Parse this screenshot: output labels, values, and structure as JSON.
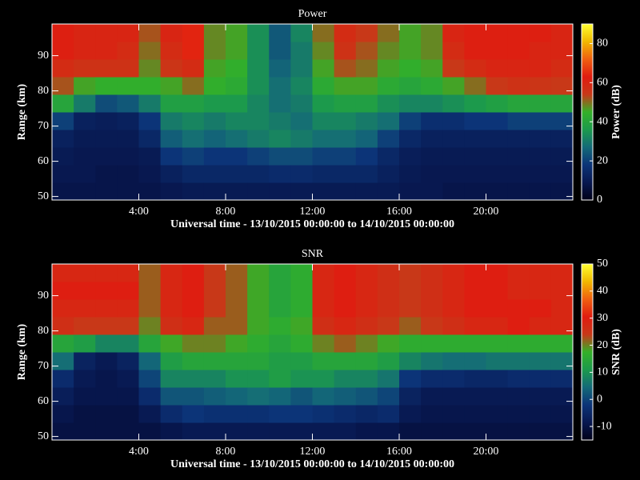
{
  "chart_data": [
    {
      "type": "heatmap",
      "title": "Power",
      "x_label": "Universal time - 13/10/2015 00:00:00 to 14/10/2015 00:00:00",
      "y_label": "Range (km)",
      "colorbar_label": "Power (dB)",
      "colormap": [
        "#000018",
        "#081850",
        "#0c3478",
        "#146a78",
        "#1c9a4c",
        "#34b028",
        "#c83818",
        "#e01c10",
        "#f06010",
        "#f0b800",
        "#ffff30"
      ],
      "xlim": [
        0,
        24
      ],
      "xticks": [
        {
          "value": 4,
          "label": "4:00"
        },
        {
          "value": 8,
          "label": "8:00"
        },
        {
          "value": 12,
          "label": "12:00"
        },
        {
          "value": 16,
          "label": "16:00"
        },
        {
          "value": 20,
          "label": "20:00"
        }
      ],
      "ylim": [
        49,
        99
      ],
      "yticks": [
        50,
        60,
        70,
        80,
        90
      ],
      "zlim": [
        0,
        90
      ],
      "zticks": [
        0,
        20,
        40,
        60,
        80
      ],
      "x": [
        0.5,
        1.5,
        2.5,
        3.5,
        4.5,
        5.5,
        6.5,
        7.5,
        8.5,
        9.5,
        10.5,
        11.5,
        12.5,
        13.5,
        14.5,
        15.5,
        16.5,
        17.5,
        18.5,
        19.5,
        20.5,
        21.5,
        22.5,
        23.5
      ],
      "y": [
        51.5,
        56.5,
        61.5,
        66.5,
        71.5,
        76.5,
        81.5,
        86.5,
        91.5,
        96.5
      ],
      "values": [
        [
          8,
          8,
          8,
          8,
          8,
          9,
          10,
          10,
          10,
          10,
          10,
          10,
          10,
          10,
          10,
          10,
          9,
          9,
          8,
          8,
          8,
          8,
          8,
          8
        ],
        [
          9,
          9,
          8,
          8,
          9,
          12,
          14,
          14,
          14,
          14,
          15,
          15,
          14,
          14,
          14,
          12,
          10,
          9,
          9,
          9,
          9,
          9,
          9,
          9
        ],
        [
          10,
          9,
          9,
          9,
          10,
          18,
          20,
          18,
          18,
          20,
          22,
          22,
          20,
          20,
          18,
          14,
          11,
          10,
          10,
          10,
          10,
          10,
          10,
          10
        ],
        [
          12,
          10,
          10,
          10,
          14,
          25,
          28,
          26,
          28,
          30,
          32,
          30,
          28,
          28,
          26,
          20,
          14,
          12,
          12,
          12,
          12,
          12,
          12,
          12
        ],
        [
          20,
          12,
          11,
          12,
          18,
          30,
          32,
          30,
          32,
          32,
          30,
          28,
          32,
          32,
          30,
          28,
          20,
          16,
          16,
          18,
          18,
          20,
          20,
          20
        ],
        [
          40,
          30,
          22,
          24,
          30,
          38,
          38,
          36,
          36,
          32,
          28,
          30,
          36,
          38,
          38,
          34,
          32,
          32,
          34,
          36,
          38,
          40,
          40,
          40
        ],
        [
          52,
          46,
          44,
          44,
          44,
          46,
          50,
          44,
          42,
          34,
          28,
          32,
          42,
          46,
          46,
          42,
          40,
          42,
          46,
          50,
          54,
          56,
          55,
          54
        ],
        [
          58,
          56,
          56,
          56,
          48,
          55,
          58,
          46,
          44,
          34,
          26,
          30,
          46,
          52,
          50,
          46,
          44,
          46,
          54,
          58,
          60,
          60,
          60,
          58
        ],
        [
          62,
          60,
          60,
          58,
          50,
          58,
          64,
          48,
          46,
          34,
          24,
          30,
          48,
          56,
          52,
          48,
          46,
          48,
          58,
          62,
          62,
          62,
          60,
          60
        ],
        [
          62,
          60,
          60,
          60,
          52,
          60,
          64,
          48,
          46,
          34,
          24,
          32,
          50,
          58,
          54,
          50,
          46,
          48,
          60,
          62,
          62,
          62,
          62,
          60
        ]
      ]
    },
    {
      "type": "heatmap",
      "title": "SNR",
      "x_label": "Universal time - 13/10/2015 00:00:00 to 14/10/2015 00:00:00",
      "y_label": "Range (km)",
      "colorbar_label": "SNR (dB)",
      "colormap": [
        "#000018",
        "#081850",
        "#0c3478",
        "#146a78",
        "#1c9a4c",
        "#34b028",
        "#c83818",
        "#e01c10",
        "#f06010",
        "#f0b800",
        "#ffff30"
      ],
      "xlim": [
        0,
        24
      ],
      "xticks": [
        {
          "value": 4,
          "label": "4:00"
        },
        {
          "value": 8,
          "label": "8:00"
        },
        {
          "value": 12,
          "label": "12:00"
        },
        {
          "value": 16,
          "label": "16:00"
        },
        {
          "value": 20,
          "label": "20:00"
        }
      ],
      "ylim": [
        49,
        99
      ],
      "yticks": [
        50,
        60,
        70,
        80,
        90
      ],
      "zlim": [
        -15,
        50
      ],
      "zticks": [
        -10,
        0,
        10,
        20,
        30,
        40,
        50
      ],
      "x": [
        0.5,
        1.5,
        2.5,
        3.5,
        4.5,
        5.5,
        6.5,
        7.5,
        8.5,
        9.5,
        10.5,
        11.5,
        12.5,
        13.5,
        14.5,
        15.5,
        16.5,
        17.5,
        18.5,
        19.5,
        20.5,
        21.5,
        22.5,
        23.5
      ],
      "y": [
        51.5,
        56.5,
        61.5,
        66.5,
        71.5,
        76.5,
        81.5,
        86.5,
        91.5,
        96.5
      ],
      "values": [
        [
          -10,
          -10,
          -10,
          -10,
          -10,
          -9,
          -8,
          -8,
          -8,
          -8,
          -8,
          -8,
          -8,
          -8,
          -9,
          -9,
          -10,
          -10,
          -10,
          -10,
          -10,
          -10,
          -10,
          -10
        ],
        [
          -9,
          -10,
          -10,
          -10,
          -8,
          -4,
          -2,
          -3,
          -3,
          -3,
          -2,
          -2,
          -3,
          -4,
          -5,
          -4,
          -8,
          -9,
          -9,
          -9,
          -9,
          -9,
          -9,
          -9
        ],
        [
          -7,
          -9,
          -9,
          -9,
          -4,
          2,
          2,
          3,
          4,
          5,
          4,
          2,
          4,
          3,
          2,
          0,
          -6,
          -8,
          -8,
          -8,
          -8,
          -8,
          -8,
          -8
        ],
        [
          -4,
          -8,
          -9,
          -8,
          0,
          8,
          8,
          8,
          10,
          10,
          12,
          10,
          10,
          8,
          8,
          6,
          -2,
          -4,
          -4,
          -5,
          -5,
          -4,
          -4,
          -4
        ],
        [
          5,
          -6,
          -8,
          -6,
          4,
          12,
          14,
          14,
          14,
          14,
          12,
          12,
          14,
          14,
          14,
          12,
          8,
          6,
          5,
          5,
          6,
          6,
          6,
          6
        ],
        [
          14,
          12,
          8,
          8,
          14,
          18,
          20,
          20,
          18,
          16,
          14,
          16,
          20,
          22,
          20,
          18,
          16,
          16,
          16,
          16,
          16,
          16,
          16,
          16
        ],
        [
          26,
          24,
          24,
          24,
          20,
          26,
          28,
          22,
          22,
          18,
          16,
          18,
          26,
          28,
          26,
          24,
          22,
          24,
          26,
          28,
          28,
          30,
          28,
          28
        ],
        [
          28,
          28,
          28,
          28,
          22,
          28,
          30,
          24,
          22,
          18,
          14,
          16,
          28,
          30,
          28,
          26,
          24,
          26,
          28,
          30,
          30,
          30,
          30,
          28
        ],
        [
          30,
          30,
          30,
          30,
          22,
          28,
          30,
          24,
          22,
          18,
          14,
          16,
          28,
          30,
          28,
          26,
          24,
          26,
          28,
          30,
          30,
          28,
          28,
          28
        ],
        [
          28,
          28,
          28,
          28,
          22,
          28,
          30,
          24,
          22,
          18,
          14,
          16,
          28,
          30,
          28,
          26,
          24,
          26,
          28,
          30,
          30,
          28,
          28,
          28
        ]
      ]
    }
  ]
}
